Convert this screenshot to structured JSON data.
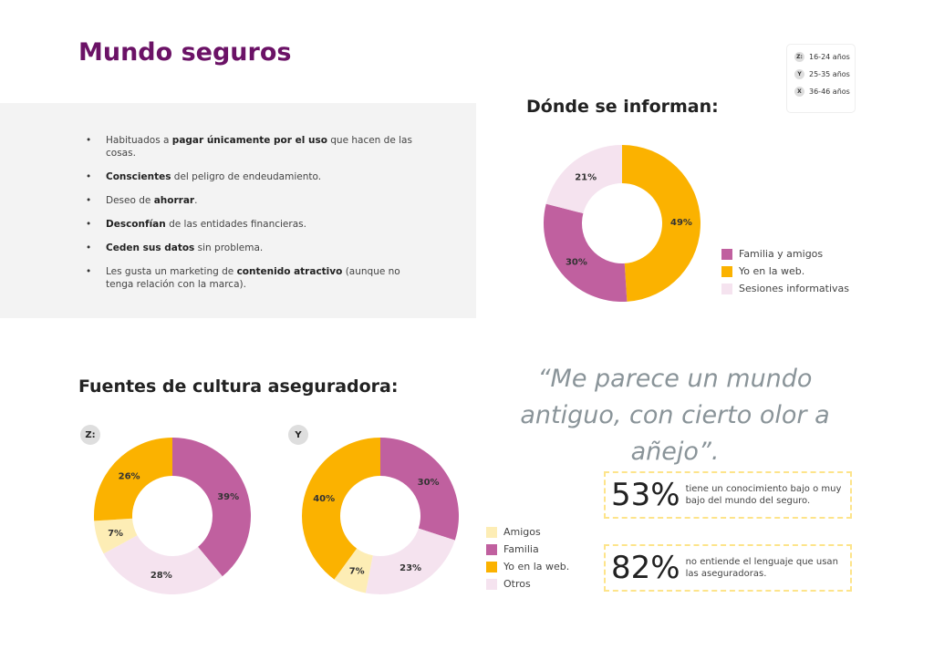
{
  "title": "Mundo seguros",
  "age_legend": [
    {
      "icon": "Z:",
      "label": "16-24 años"
    },
    {
      "icon": "Y",
      "label": "25-35 años"
    },
    {
      "icon": "X",
      "label": "36-46 años"
    }
  ],
  "bullets": [
    {
      "pre": "Habituados a ",
      "bold": "pagar únicamente por el uso",
      "post": " que hacen de las cosas."
    },
    {
      "pre": "",
      "bold": "Conscientes",
      "post": " del peligro de endeudamiento."
    },
    {
      "pre": "Deseo de ",
      "bold": "ahorrar",
      "post": "."
    },
    {
      "pre": "",
      "bold": "Desconfían",
      "post": " de las entidades financieras."
    },
    {
      "pre": "",
      "bold": "Ceden sus datos",
      "post": " sin problema."
    },
    {
      "pre": "Les gusta un marketing de ",
      "bold": "contenido atractivo",
      "post": " (aunque no tenga relación con la marca)."
    }
  ],
  "colors": {
    "title": "#6b1266",
    "familia": "#c0609f",
    "web": "#fbb200",
    "sesiones": "#f5e3ef",
    "amigos": "#fdedb5"
  },
  "chart_data": [
    {
      "type": "pie",
      "title": "Dónde se informan:",
      "categories": [
        "Yo en la web.",
        "Familia y amigos",
        "Sesiones informativas"
      ],
      "values": [
        49,
        30,
        21
      ],
      "colors": [
        "#fbb200",
        "#c0609f",
        "#f5e3ef"
      ],
      "legend": [
        "Familia y amigos",
        "Yo en la web.",
        "Sesiones informativas"
      ],
      "legend_colors": [
        "#c0609f",
        "#fbb200",
        "#f5e3ef"
      ]
    },
    {
      "type": "pie",
      "title": "Fuentes de cultura aseguradora:",
      "group": "Z:",
      "categories": [
        "Familia",
        "Otros",
        "Amigos",
        "Yo en la web."
      ],
      "values": [
        39,
        28,
        7,
        26
      ],
      "colors": [
        "#c0609f",
        "#f5e3ef",
        "#fdedb5",
        "#fbb200"
      ]
    },
    {
      "type": "pie",
      "group": "Y",
      "categories": [
        "Familia",
        "Otros",
        "Amigos",
        "Yo en la web."
      ],
      "values": [
        30,
        23,
        7,
        40
      ],
      "colors": [
        "#c0609f",
        "#f5e3ef",
        "#fdedb5",
        "#fbb200"
      ],
      "legend": [
        "Amigos",
        "Familia",
        "Yo en la web.",
        "Otros"
      ],
      "legend_colors": [
        "#fdedb5",
        "#c0609f",
        "#fbb200",
        "#f5e3ef"
      ]
    }
  ],
  "quote": "“Me parece un mundo antiguo, con cierto olor a añejo”.",
  "stats": [
    {
      "value": "53%",
      "text": "tiene un conocimiento bajo o muy bajo del mundo del seguro."
    },
    {
      "value": "82%",
      "text": "no entiende el lenguaje que usan las aseguradoras."
    }
  ]
}
